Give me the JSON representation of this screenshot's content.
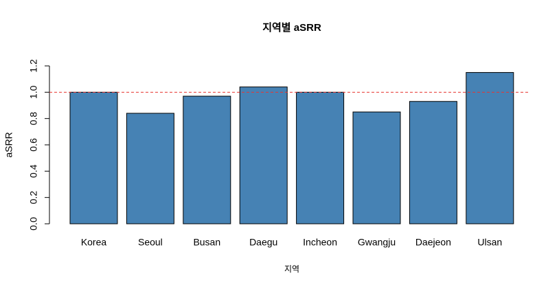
{
  "chart_data": {
    "type": "bar",
    "title": "지역별 aSRR",
    "xlabel": "지역",
    "ylabel": "aSRR",
    "categories": [
      "Korea",
      "Seoul",
      "Busan",
      "Daegu",
      "Incheon",
      "Gwangju",
      "Daejeon",
      "Ulsan"
    ],
    "values": [
      1.0,
      0.84,
      0.97,
      1.04,
      1.0,
      0.85,
      0.93,
      1.15
    ],
    "color": "#4682b4",
    "ylim": [
      0,
      1.2
    ],
    "yticks": [
      {
        "value": 0,
        "label": "0.0"
      },
      {
        "value": 0.2,
        "label": "0.2"
      },
      {
        "value": 0.4,
        "label": "0.4"
      },
      {
        "value": 0.6,
        "label": "0.6"
      },
      {
        "value": 0.8,
        "label": "0.8"
      },
      {
        "value": 1,
        "label": "1.0"
      },
      {
        "value": 1.2,
        "label": "1.2"
      }
    ],
    "reference_line": {
      "value": 1,
      "color": "#e8342f"
    }
  }
}
